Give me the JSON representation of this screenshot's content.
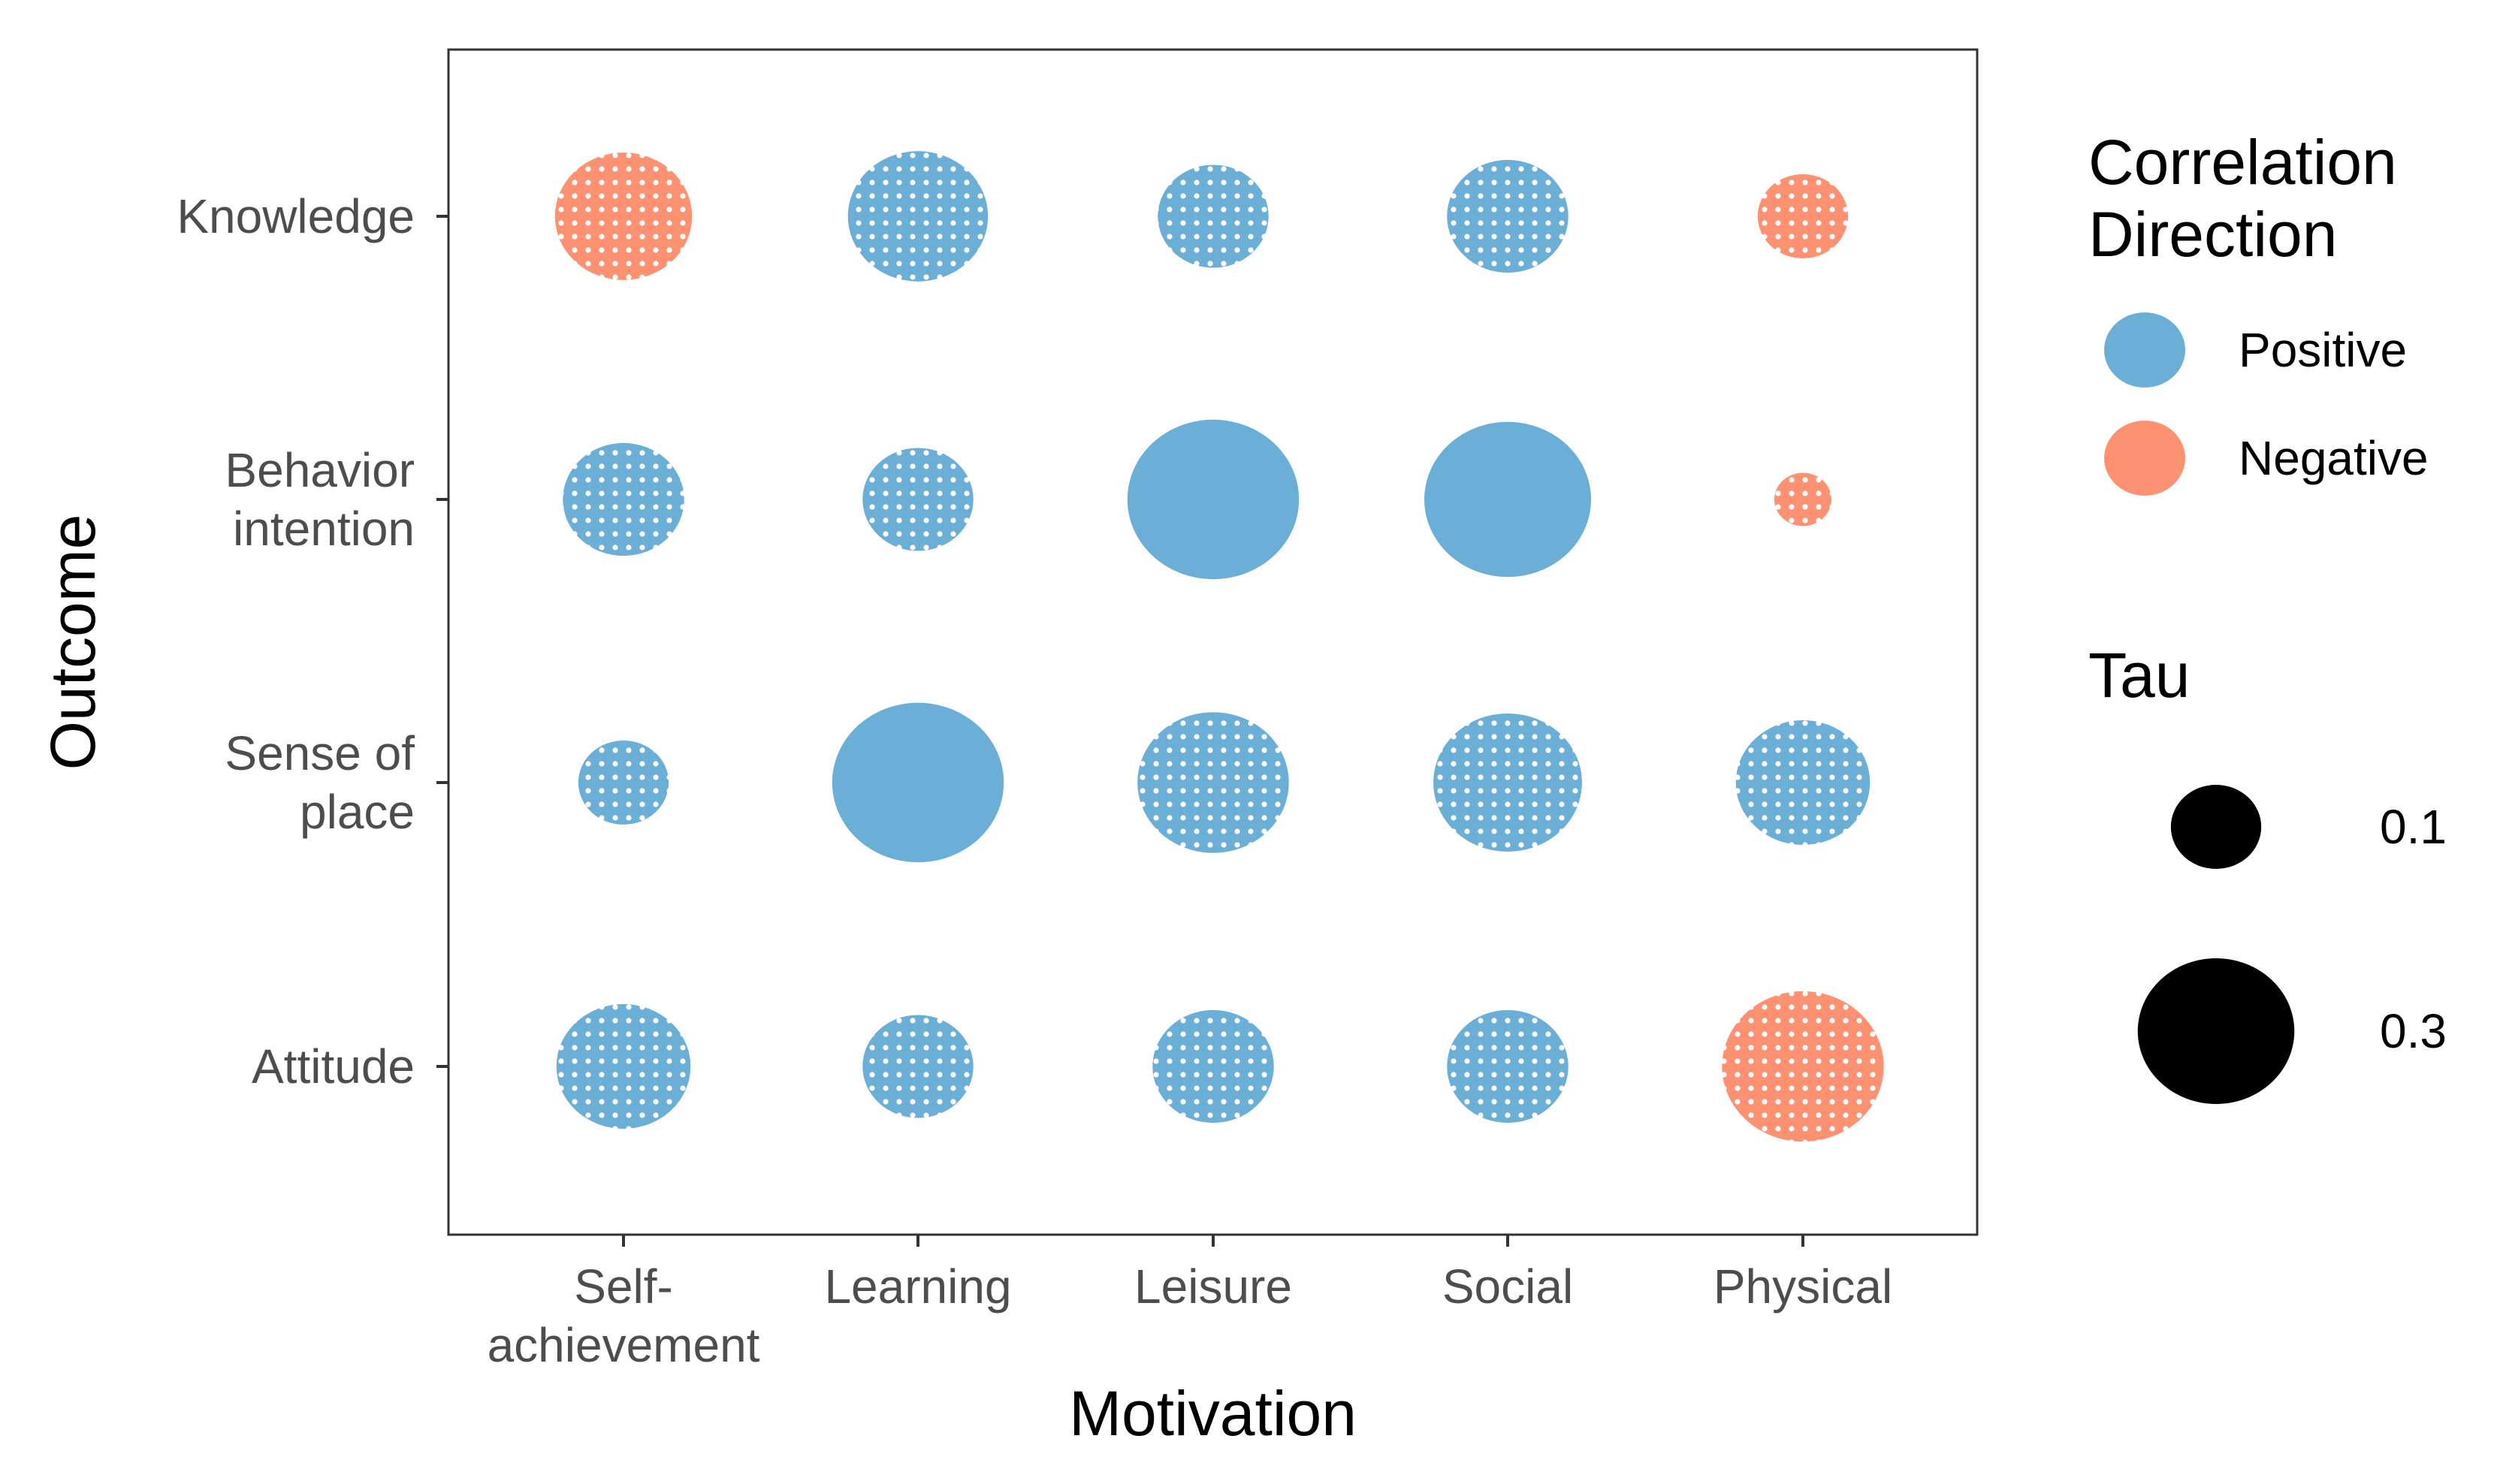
{
  "chart_data": {
    "type": "bubble",
    "xlabel": "Motivation",
    "ylabel": "Outcome",
    "x_categories": [
      [
        "Self-",
        "achievement"
      ],
      [
        "Learning"
      ],
      [
        "Leisure"
      ],
      [
        "Social"
      ],
      [
        "Physical"
      ]
    ],
    "y_categories": [
      [
        "Knowledge"
      ],
      [
        "Behavior",
        "intention"
      ],
      [
        "Sense of",
        "place"
      ],
      [
        "Attitude"
      ]
    ],
    "colors": {
      "Positive": "#6baed6",
      "Negative": "#fc9272"
    },
    "points": [
      {
        "x": 0,
        "y": 0,
        "tau": 0.23,
        "direction": "Negative",
        "significant": false
      },
      {
        "x": 1,
        "y": 0,
        "tau": 0.24,
        "direction": "Positive",
        "significant": false
      },
      {
        "x": 2,
        "y": 0,
        "tau": 0.15,
        "direction": "Positive",
        "significant": false
      },
      {
        "x": 3,
        "y": 0,
        "tau": 0.18,
        "direction": "Positive",
        "significant": false
      },
      {
        "x": 4,
        "y": 0,
        "tau": 0.1,
        "direction": "Negative",
        "significant": false
      },
      {
        "x": 0,
        "y": 1,
        "tau": 0.18,
        "direction": "Positive",
        "significant": false
      },
      {
        "x": 1,
        "y": 1,
        "tau": 0.15,
        "direction": "Positive",
        "significant": false
      },
      {
        "x": 2,
        "y": 1,
        "tau": 0.36,
        "direction": "Positive",
        "significant": true
      },
      {
        "x": 3,
        "y": 1,
        "tau": 0.34,
        "direction": "Positive",
        "significant": true
      },
      {
        "x": 4,
        "y": 1,
        "tau": 0.04,
        "direction": "Negative",
        "significant": false
      },
      {
        "x": 0,
        "y": 2,
        "tau": 0.1,
        "direction": "Positive",
        "significant": false
      },
      {
        "x": 1,
        "y": 2,
        "tau": 0.36,
        "direction": "Positive",
        "significant": true
      },
      {
        "x": 2,
        "y": 2,
        "tau": 0.28,
        "direction": "Positive",
        "significant": false
      },
      {
        "x": 3,
        "y": 2,
        "tau": 0.27,
        "direction": "Positive",
        "significant": false
      },
      {
        "x": 4,
        "y": 2,
        "tau": 0.22,
        "direction": "Positive",
        "significant": false
      },
      {
        "x": 0,
        "y": 3,
        "tau": 0.22,
        "direction": "Positive",
        "significant": false
      },
      {
        "x": 1,
        "y": 3,
        "tau": 0.15,
        "direction": "Positive",
        "significant": false
      },
      {
        "x": 2,
        "y": 3,
        "tau": 0.18,
        "direction": "Positive",
        "significant": false
      },
      {
        "x": 3,
        "y": 3,
        "tau": 0.18,
        "direction": "Positive",
        "significant": false
      },
      {
        "x": 4,
        "y": 3,
        "tau": 0.32,
        "direction": "Negative",
        "significant": false
      }
    ],
    "legend": {
      "direction_title": [
        "Correlation",
        "Direction"
      ],
      "direction_items": [
        {
          "label": "Positive",
          "direction": "Positive"
        },
        {
          "label": "Negative",
          "direction": "Negative"
        }
      ],
      "size_title": "Tau",
      "size_items": [
        {
          "label": "0.1",
          "tau": 0.1
        },
        {
          "label": "0.3",
          "tau": 0.3
        }
      ],
      "placement": "right"
    }
  }
}
